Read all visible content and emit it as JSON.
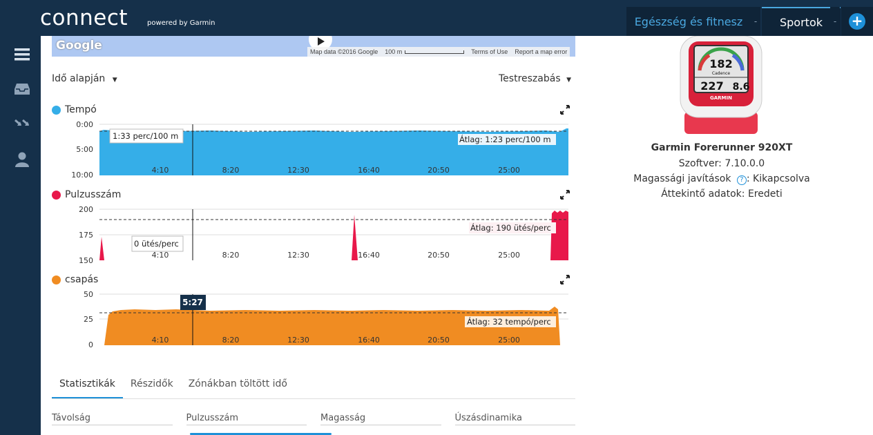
{
  "header": {
    "logo": "connect",
    "logo_sub": "powered by Garmin",
    "nav_health": "Egészség és fitnesz",
    "nav_sports": "Sportok",
    "nav_sep": "-",
    "plus": "+"
  },
  "sidebar": {
    "items": [
      "menu-icon",
      "inbox-icon",
      "connections-icon",
      "profile-icon"
    ]
  },
  "map": {
    "brand": "Google",
    "attribution": "Map data ©2016 Google",
    "scale": "100 m",
    "terms": "Terms of Use",
    "report": "Report a map error"
  },
  "controls": {
    "time_basis": "Idő alapján",
    "customize": "Testreszabás"
  },
  "charts": {
    "x_ticks": [
      "4:10",
      "8:20",
      "12:30",
      "16:40",
      "20:50",
      "25:00"
    ],
    "pace": {
      "title": "Tempó",
      "color": "#35aee8",
      "y_ticks": [
        "0:00",
        "5:00",
        "10:00"
      ],
      "cursor_label": "1:33 perc/100 m",
      "avg_label": "Átlag: 1:23 perc/100 m"
    },
    "hr": {
      "title": "Pulzusszám",
      "color": "#e8184a",
      "y_ticks": [
        "200",
        "175",
        "150"
      ],
      "cursor_label": "0 ütés/perc",
      "avg_label": "Átlag: 190 ütés/perc"
    },
    "stroke": {
      "title": "csapás",
      "color": "#f08c22",
      "y_ticks": [
        "50",
        "25",
        "0"
      ],
      "cursor_time": "5:27",
      "avg_label": "Átlag: 32 tempó/perc"
    }
  },
  "tabs": [
    "Statisztikák",
    "Részidők",
    "Zónákban töltött idő"
  ],
  "stat_columns": [
    "Távolság",
    "Pulzusszám",
    "Magasság",
    "Úszásdinamika"
  ],
  "device": {
    "screen_top": "182",
    "screen_mid": "Cadence",
    "screen_left": "227",
    "screen_right": "8.6",
    "brand": "GARMIN",
    "name": "Garmin Forerunner 920XT",
    "software": "Szoftver: 7.10.0.0",
    "altitude_prefix": "Magassági javítások",
    "altitude_value": ": Kikapcsolva",
    "overview": "Áttekintő adatok: Eredeti"
  },
  "colors": {
    "topbar": "#15304a",
    "accent": "#1e90d8"
  }
}
